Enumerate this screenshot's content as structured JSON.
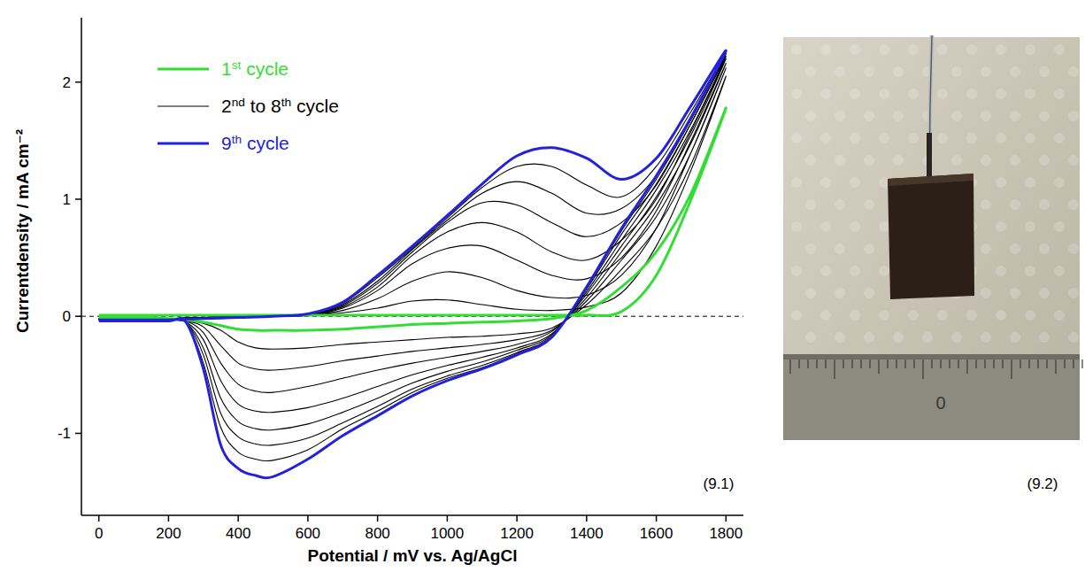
{
  "chart_data": {
    "type": "line",
    "x_label": "Potential / mV vs. Ag/AgCl",
    "y_label": "Currentdensity / mA cm⁻²",
    "annotations": [
      "(9.1)"
    ],
    "xlim": [
      -50,
      1850
    ],
    "xticks": [
      0,
      200,
      400,
      600,
      800,
      1000,
      1200,
      1400,
      1600,
      1800
    ],
    "ylim": [
      -1.7,
      2.55
    ],
    "yticks": [
      -1,
      0,
      1,
      2
    ],
    "hline": 0,
    "grid": false,
    "legend": "upper left",
    "x": [
      0,
      100,
      200,
      300,
      400,
      500,
      600,
      700,
      800,
      900,
      1000,
      1100,
      1200,
      1300,
      1400,
      1500,
      1600,
      1700,
      1800,
      1700,
      1600,
      1500,
      1400,
      1300,
      1200,
      1100,
      1000,
      900,
      800,
      700,
      600,
      500,
      450,
      400,
      350,
      300,
      250,
      200,
      100,
      0
    ],
    "series": [
      {
        "name": "1st cycle",
        "color": "#33dd33",
        "values": [
          0.01,
          0.01,
          0.01,
          0.01,
          0.01,
          0.01,
          0.01,
          0.01,
          0.01,
          0.01,
          0.01,
          0.01,
          0.01,
          0.01,
          0.01,
          0.04,
          0.35,
          1,
          1.78,
          1.05,
          0.55,
          0.25,
          0.05,
          -0.02,
          -0.04,
          -0.05,
          -0.06,
          -0.07,
          -0.09,
          -0.11,
          -0.12,
          -0.12,
          -0.12,
          -0.11,
          -0.08,
          -0.05,
          -0.03,
          -0.02,
          -0.01,
          -0.01
        ]
      },
      {
        "name": "2nd to 8th cycle",
        "color": "#000000",
        "values": [
          [
            -0.02,
            -0.02,
            -0.02,
            -0.01,
            0,
            0,
            0.01,
            0.03,
            0.07,
            0.13,
            0.14,
            0.1,
            0.06,
            0.05,
            0.08,
            0.2,
            0.6,
            1.25,
            2.05,
            1.3,
            0.75,
            0.4,
            0.1,
            -0.1,
            -0.15,
            -0.17,
            -0.18,
            -0.2,
            -0.22,
            -0.24,
            -0.27,
            -0.28,
            -0.27,
            -0.22,
            -0.12,
            -0.06,
            -0.04,
            -0.03,
            -0.03,
            -0.02
          ],
          [
            -0.02,
            -0.02,
            -0.02,
            -0.01,
            0,
            0,
            0.01,
            0.05,
            0.15,
            0.3,
            0.38,
            0.33,
            0.22,
            0.16,
            0.18,
            0.35,
            0.75,
            1.4,
            2.12,
            1.4,
            0.85,
            0.48,
            0.13,
            -0.12,
            -0.2,
            -0.24,
            -0.27,
            -0.3,
            -0.34,
            -0.38,
            -0.43,
            -0.46,
            -0.45,
            -0.4,
            -0.25,
            -0.09,
            -0.04,
            -0.03,
            -0.03,
            -0.03
          ],
          [
            -0.02,
            -0.02,
            -0.02,
            -0.01,
            0,
            0,
            0.01,
            0.07,
            0.22,
            0.45,
            0.58,
            0.6,
            0.48,
            0.35,
            0.32,
            0.5,
            0.9,
            1.5,
            2.16,
            1.48,
            0.95,
            0.55,
            0.16,
            -0.13,
            -0.24,
            -0.3,
            -0.35,
            -0.4,
            -0.46,
            -0.53,
            -0.6,
            -0.65,
            -0.64,
            -0.58,
            -0.4,
            -0.14,
            -0.04,
            -0.03,
            -0.03,
            -0.03
          ],
          [
            -0.02,
            -0.02,
            -0.02,
            -0.01,
            0,
            0,
            0.01,
            0.08,
            0.25,
            0.52,
            0.72,
            0.8,
            0.72,
            0.55,
            0.48,
            0.65,
            1,
            1.58,
            2.2,
            1.55,
            1.02,
            0.6,
            0.19,
            -0.15,
            -0.27,
            -0.35,
            -0.42,
            -0.5,
            -0.6,
            -0.7,
            -0.78,
            -0.82,
            -0.81,
            -0.75,
            -0.55,
            -0.2,
            -0.05,
            -0.03,
            -0.03,
            -0.03
          ],
          [
            -0.02,
            -0.02,
            -0.02,
            -0.01,
            0,
            0,
            0.01,
            0.09,
            0.28,
            0.55,
            0.8,
            0.97,
            0.95,
            0.8,
            0.68,
            0.8,
            1.12,
            1.65,
            2.22,
            1.6,
            1.08,
            0.65,
            0.21,
            -0.16,
            -0.29,
            -0.39,
            -0.47,
            -0.57,
            -0.7,
            -0.82,
            -0.92,
            -0.97,
            -0.96,
            -0.9,
            -0.7,
            -0.27,
            -0.05,
            -0.03,
            -0.03,
            -0.03
          ],
          [
            -0.02,
            -0.02,
            -0.02,
            -0.01,
            0,
            0,
            0.01,
            0.1,
            0.3,
            0.57,
            0.82,
            1.05,
            1.15,
            1.05,
            0.88,
            0.92,
            1.2,
            1.7,
            2.24,
            1.65,
            1.13,
            0.7,
            0.23,
            -0.17,
            -0.31,
            -0.42,
            -0.51,
            -0.62,
            -0.77,
            -0.91,
            -1.04,
            -1.1,
            -1.09,
            -1.03,
            -0.83,
            -0.33,
            -0.05,
            -0.04,
            -0.04,
            -0.03
          ],
          [
            -0.02,
            -0.02,
            -0.02,
            -0.01,
            0,
            0,
            0.01,
            0.11,
            0.33,
            0.58,
            0.84,
            1.1,
            1.28,
            1.28,
            1.12,
            1.02,
            1.28,
            1.75,
            2.25,
            1.68,
            1.17,
            0.73,
            0.24,
            -0.18,
            -0.32,
            -0.44,
            -0.53,
            -0.65,
            -0.81,
            -0.96,
            -1.14,
            -1.23,
            -1.22,
            -1.16,
            -0.95,
            -0.4,
            -0.05,
            -0.04,
            -0.04,
            -0.03
          ]
        ]
      },
      {
        "name": "9th cycle",
        "color": "#2222dd",
        "values": [
          -0.03,
          -0.03,
          -0.03,
          -0.02,
          -0.01,
          0,
          0.02,
          0.12,
          0.35,
          0.6,
          0.86,
          1.13,
          1.37,
          1.44,
          1.35,
          1.17,
          1.35,
          1.8,
          2.27,
          1.7,
          1.2,
          0.75,
          0.25,
          -0.18,
          -0.33,
          -0.45,
          -0.55,
          -0.68,
          -0.85,
          -1.02,
          -1.22,
          -1.37,
          -1.36,
          -1.3,
          -1.1,
          -0.45,
          -0.05,
          -0.04,
          -0.04,
          -0.04
        ]
      }
    ]
  },
  "photo": {
    "label": "(9.2)",
    "ruler_label": "0"
  }
}
